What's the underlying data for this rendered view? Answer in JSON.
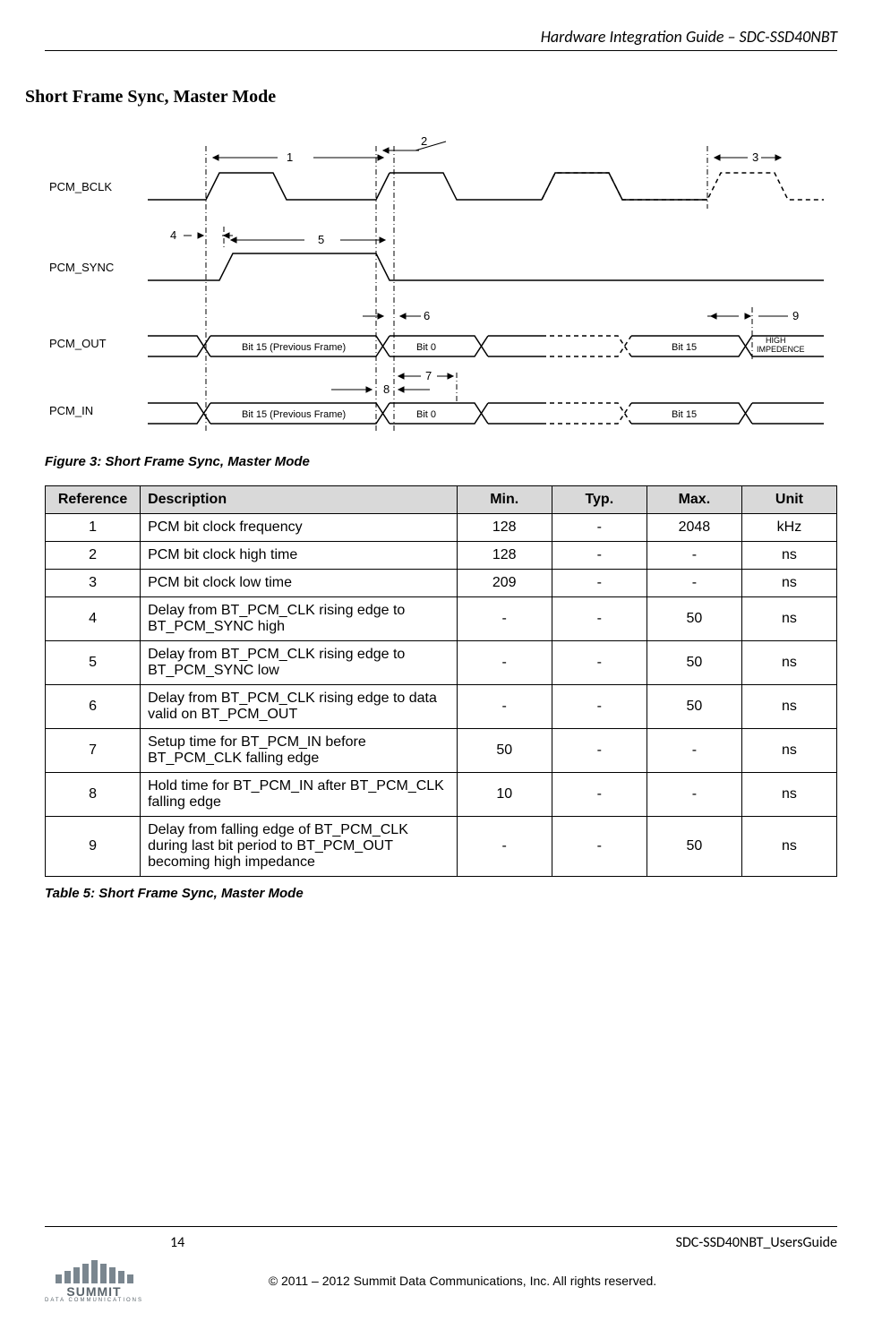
{
  "header": {
    "title": "Hardware Integration Guide – SDC-SSD40NBT"
  },
  "section": {
    "title": "Short Frame Sync, Master Mode"
  },
  "diagram": {
    "signals": [
      "PCM_BCLK",
      "PCM_SYNC",
      "PCM_OUT",
      "PCM_IN"
    ],
    "annotations": [
      "1",
      "2",
      "3",
      "4",
      "5",
      "6",
      "7",
      "8",
      "9"
    ],
    "cells": {
      "pcm_out_prev": "Bit 15 (Previous Frame)",
      "pcm_out_bit0": "Bit 0",
      "pcm_out_bit15": "Bit 15",
      "pcm_out_hiz": "HIGH\nIMPEDENCE",
      "pcm_in_prev": "Bit 15 (Previous Frame)",
      "pcm_in_bit0": "Bit 0",
      "pcm_in_bit15": "Bit 15"
    }
  },
  "figure_caption": "Figure 3: Short Frame Sync, Master Mode",
  "table": {
    "headers": [
      "Reference",
      "Description",
      "Min.",
      "Typ.",
      "Max.",
      "Unit"
    ],
    "rows": [
      {
        "ref": "1",
        "desc": "PCM bit clock frequency",
        "min": "128",
        "typ": "-",
        "max": "2048",
        "unit": "kHz"
      },
      {
        "ref": "2",
        "desc": "PCM bit clock high time",
        "min": "128",
        "typ": "-",
        "max": "-",
        "unit": "ns"
      },
      {
        "ref": "3",
        "desc": "PCM bit clock low time",
        "min": "209",
        "typ": "-",
        "max": "-",
        "unit": "ns"
      },
      {
        "ref": "4",
        "desc": "Delay from BT_PCM_CLK rising edge to BT_PCM_SYNC high",
        "min": "-",
        "typ": "-",
        "max": "50",
        "unit": "ns"
      },
      {
        "ref": "5",
        "desc": "Delay from BT_PCM_CLK rising edge to BT_PCM_SYNC low",
        "min": "-",
        "typ": "-",
        "max": "50",
        "unit": "ns"
      },
      {
        "ref": "6",
        "desc": "Delay from BT_PCM_CLK rising edge to data valid on BT_PCM_OUT",
        "min": "-",
        "typ": "-",
        "max": "50",
        "unit": "ns"
      },
      {
        "ref": "7",
        "desc": "Setup time for BT_PCM_IN before BT_PCM_CLK falling edge",
        "min": "50",
        "typ": "-",
        "max": "-",
        "unit": "ns"
      },
      {
        "ref": "8",
        "desc": "Hold time for BT_PCM_IN after BT_PCM_CLK falling edge",
        "min": "10",
        "typ": "-",
        "max": "-",
        "unit": "ns"
      },
      {
        "ref": "9",
        "desc": "Delay from falling edge of BT_PCM_CLK during last bit period to BT_PCM_OUT becoming high impedance",
        "min": "-",
        "typ": "-",
        "max": "50",
        "unit": "ns"
      }
    ]
  },
  "table_caption": "Table 5: Short Frame Sync, Master Mode",
  "footer": {
    "page_number": "14",
    "doc_id": "SDC-SSD40NBT_UsersGuide",
    "copyright": "© 2011 – 2012 Summit Data Communications, Inc. All rights reserved.",
    "logo_name": "SUMMIT",
    "logo_sub": "DATA  COMMUNICATIONS"
  }
}
